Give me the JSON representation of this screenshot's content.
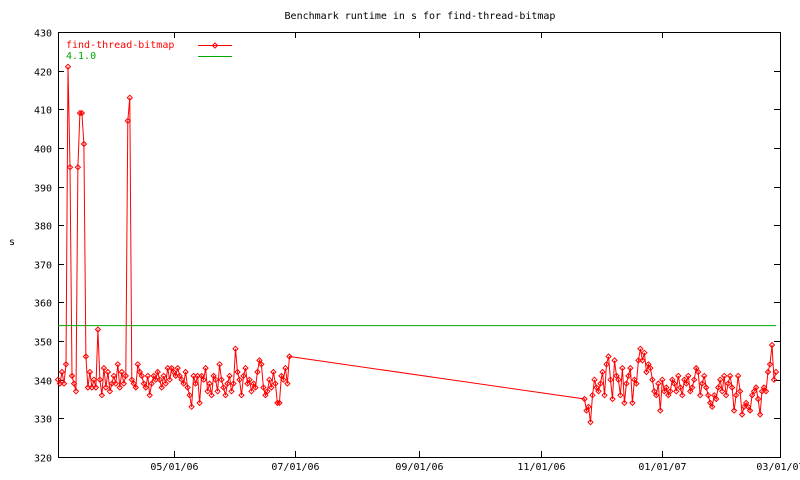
{
  "chart_data": {
    "type": "line",
    "title": "Benchmark runtime in s for find-thread-bitmap",
    "xlabel": "",
    "ylabel": "s",
    "ylim": [
      320,
      430
    ],
    "yticks": [
      "320",
      "330",
      "340",
      "350",
      "360",
      "370",
      "380",
      "390",
      "400",
      "410",
      "420",
      "430"
    ],
    "xlim": [
      "2006-03-04",
      "2007-03-01"
    ],
    "xticks": [
      {
        "date": "2006-05-01",
        "label": "05/01/06"
      },
      {
        "date": "2006-07-01",
        "label": "07/01/06"
      },
      {
        "date": "2006-09-01",
        "label": "09/01/06"
      },
      {
        "date": "2006-11-01",
        "label": "11/01/06"
      },
      {
        "date": "2007-01-01",
        "label": "01/01/07"
      },
      {
        "date": "2007-03-01",
        "label": "03/01/07"
      }
    ],
    "grid": false,
    "legend_position": "top-left",
    "series": [
      {
        "name": "find-thread-bitmap",
        "color": "#ff0000",
        "marker": "diamond",
        "points": [
          [
            "2006-03-04",
            340
          ],
          [
            "2006-03-05",
            339
          ],
          [
            "2006-03-06",
            342
          ],
          [
            "2006-03-07",
            339
          ],
          [
            "2006-03-08",
            344
          ],
          [
            "2006-03-09",
            421
          ],
          [
            "2006-03-10",
            395
          ],
          [
            "2006-03-11",
            341
          ],
          [
            "2006-03-12",
            339
          ],
          [
            "2006-03-13",
            337
          ],
          [
            "2006-03-14",
            395
          ],
          [
            "2006-03-15",
            409
          ],
          [
            "2006-03-16",
            409
          ],
          [
            "2006-03-17",
            401
          ],
          [
            "2006-03-18",
            346
          ],
          [
            "2006-03-19",
            338
          ],
          [
            "2006-03-20",
            342
          ],
          [
            "2006-03-21",
            338
          ],
          [
            "2006-03-22",
            340
          ],
          [
            "2006-03-23",
            338
          ],
          [
            "2006-03-24",
            353
          ],
          [
            "2006-03-25",
            340
          ],
          [
            "2006-03-26",
            336
          ],
          [
            "2006-03-27",
            343
          ],
          [
            "2006-03-28",
            338
          ],
          [
            "2006-03-29",
            342
          ],
          [
            "2006-03-30",
            337
          ],
          [
            "2006-03-31",
            339
          ],
          [
            "2006-04-01",
            341
          ],
          [
            "2006-04-02",
            339
          ],
          [
            "2006-04-03",
            344
          ],
          [
            "2006-04-04",
            338
          ],
          [
            "2006-04-05",
            342
          ],
          [
            "2006-04-06",
            339
          ],
          [
            "2006-04-07",
            341
          ],
          [
            "2006-04-08",
            407
          ],
          [
            "2006-04-09",
            413
          ],
          [
            "2006-04-10",
            340
          ],
          [
            "2006-04-11",
            339
          ],
          [
            "2006-04-12",
            338
          ],
          [
            "2006-04-13",
            344
          ],
          [
            "2006-04-14",
            342
          ],
          [
            "2006-04-15",
            341
          ],
          [
            "2006-04-16",
            339
          ],
          [
            "2006-04-17",
            338
          ],
          [
            "2006-04-18",
            341
          ],
          [
            "2006-04-19",
            336
          ],
          [
            "2006-04-20",
            339
          ],
          [
            "2006-04-21",
            341
          ],
          [
            "2006-04-22",
            340
          ],
          [
            "2006-04-23",
            342
          ],
          [
            "2006-04-24",
            340
          ],
          [
            "2006-04-25",
            338
          ],
          [
            "2006-04-26",
            341
          ],
          [
            "2006-04-27",
            339
          ],
          [
            "2006-04-28",
            343
          ],
          [
            "2006-04-29",
            340
          ],
          [
            "2006-04-30",
            343
          ],
          [
            "2006-05-01",
            342
          ],
          [
            "2006-05-02",
            341
          ],
          [
            "2006-05-03",
            343
          ],
          [
            "2006-05-04",
            341
          ],
          [
            "2006-05-05",
            340
          ],
          [
            "2006-05-06",
            339
          ],
          [
            "2006-05-07",
            342
          ],
          [
            "2006-05-08",
            338
          ],
          [
            "2006-05-09",
            336
          ],
          [
            "2006-05-10",
            333
          ],
          [
            "2006-05-11",
            341
          ],
          [
            "2006-05-12",
            339
          ],
          [
            "2006-05-13",
            341
          ],
          [
            "2006-05-14",
            334
          ],
          [
            "2006-05-15",
            341
          ],
          [
            "2006-05-16",
            340
          ],
          [
            "2006-05-17",
            343
          ],
          [
            "2006-05-18",
            337
          ],
          [
            "2006-05-19",
            339
          ],
          [
            "2006-05-20",
            336
          ],
          [
            "2006-05-21",
            341
          ],
          [
            "2006-05-22",
            340
          ],
          [
            "2006-05-23",
            337
          ],
          [
            "2006-05-24",
            344
          ],
          [
            "2006-05-25",
            340
          ],
          [
            "2006-05-26",
            338
          ],
          [
            "2006-05-27",
            336
          ],
          [
            "2006-05-28",
            339
          ],
          [
            "2006-05-29",
            341
          ],
          [
            "2006-05-30",
            337
          ],
          [
            "2006-05-31",
            339
          ],
          [
            "2006-06-01",
            348
          ],
          [
            "2006-06-02",
            342
          ],
          [
            "2006-06-03",
            340
          ],
          [
            "2006-06-04",
            336
          ],
          [
            "2006-06-05",
            341
          ],
          [
            "2006-06-06",
            343
          ],
          [
            "2006-06-07",
            339
          ],
          [
            "2006-06-08",
            340
          ],
          [
            "2006-06-09",
            337
          ],
          [
            "2006-06-10",
            339
          ],
          [
            "2006-06-11",
            338
          ],
          [
            "2006-06-12",
            342
          ],
          [
            "2006-06-13",
            345
          ],
          [
            "2006-06-14",
            344
          ],
          [
            "2006-06-15",
            338
          ],
          [
            "2006-06-16",
            336
          ],
          [
            "2006-06-17",
            337
          ],
          [
            "2006-06-18",
            340
          ],
          [
            "2006-06-19",
            338
          ],
          [
            "2006-06-20",
            342
          ],
          [
            "2006-06-21",
            339
          ],
          [
            "2006-06-22",
            334
          ],
          [
            "2006-06-23",
            334
          ],
          [
            "2006-06-24",
            341
          ],
          [
            "2006-06-25",
            340
          ],
          [
            "2006-06-26",
            343
          ],
          [
            "2006-06-27",
            339
          ],
          [
            "2006-06-28",
            346
          ],
          [
            "2006-11-23",
            335
          ],
          [
            "2006-11-24",
            332
          ],
          [
            "2006-11-25",
            333
          ],
          [
            "2006-11-26",
            329
          ],
          [
            "2006-11-27",
            336
          ],
          [
            "2006-11-28",
            340
          ],
          [
            "2006-11-29",
            338
          ],
          [
            "2006-11-30",
            337
          ],
          [
            "2006-12-01",
            339
          ],
          [
            "2006-12-02",
            342
          ],
          [
            "2006-12-03",
            336
          ],
          [
            "2006-12-04",
            344
          ],
          [
            "2006-12-05",
            346
          ],
          [
            "2006-12-06",
            340
          ],
          [
            "2006-12-07",
            335
          ],
          [
            "2006-12-08",
            345
          ],
          [
            "2006-12-09",
            341
          ],
          [
            "2006-12-10",
            340
          ],
          [
            "2006-12-11",
            336
          ],
          [
            "2006-12-12",
            343
          ],
          [
            "2006-12-13",
            334
          ],
          [
            "2006-12-14",
            339
          ],
          [
            "2006-12-15",
            341
          ],
          [
            "2006-12-16",
            343
          ],
          [
            "2006-12-17",
            334
          ],
          [
            "2006-12-18",
            340
          ],
          [
            "2006-12-19",
            339
          ],
          [
            "2006-12-20",
            345
          ],
          [
            "2006-12-21",
            348
          ],
          [
            "2006-12-22",
            345
          ],
          [
            "2006-12-23",
            347
          ],
          [
            "2006-12-24",
            342
          ],
          [
            "2006-12-25",
            344
          ],
          [
            "2006-12-26",
            343
          ],
          [
            "2006-12-27",
            340
          ],
          [
            "2006-12-28",
            337
          ],
          [
            "2006-12-29",
            336
          ],
          [
            "2006-12-30",
            339
          ],
          [
            "2006-12-31",
            332
          ],
          [
            "2007-01-01",
            340
          ],
          [
            "2007-01-02",
            337
          ],
          [
            "2007-01-03",
            338
          ],
          [
            "2007-01-04",
            336
          ],
          [
            "2007-01-05",
            337
          ],
          [
            "2007-01-06",
            340
          ],
          [
            "2007-01-07",
            339
          ],
          [
            "2007-01-08",
            337
          ],
          [
            "2007-01-09",
            341
          ],
          [
            "2007-01-10",
            338
          ],
          [
            "2007-01-11",
            336
          ],
          [
            "2007-01-12",
            340
          ],
          [
            "2007-01-13",
            339
          ],
          [
            "2007-01-14",
            341
          ],
          [
            "2007-01-15",
            337
          ],
          [
            "2007-01-16",
            338
          ],
          [
            "2007-01-17",
            340
          ],
          [
            "2007-01-18",
            343
          ],
          [
            "2007-01-19",
            342
          ],
          [
            "2007-01-20",
            336
          ],
          [
            "2007-01-21",
            339
          ],
          [
            "2007-01-22",
            341
          ],
          [
            "2007-01-23",
            338
          ],
          [
            "2007-01-24",
            336
          ],
          [
            "2007-01-25",
            334
          ],
          [
            "2007-01-26",
            333
          ],
          [
            "2007-01-27",
            336
          ],
          [
            "2007-01-28",
            335
          ],
          [
            "2007-01-29",
            338
          ],
          [
            "2007-01-30",
            340
          ],
          [
            "2007-01-31",
            337
          ],
          [
            "2007-02-01",
            341
          ],
          [
            "2007-02-02",
            336
          ],
          [
            "2007-02-03",
            339
          ],
          [
            "2007-02-04",
            341
          ],
          [
            "2007-02-05",
            338
          ],
          [
            "2007-02-06",
            332
          ],
          [
            "2007-02-07",
            336
          ],
          [
            "2007-02-08",
            341
          ],
          [
            "2007-02-09",
            337
          ],
          [
            "2007-02-10",
            331
          ],
          [
            "2007-02-11",
            333
          ],
          [
            "2007-02-12",
            334
          ],
          [
            "2007-02-13",
            333
          ],
          [
            "2007-02-14",
            332
          ],
          [
            "2007-02-15",
            336
          ],
          [
            "2007-02-16",
            337
          ],
          [
            "2007-02-17",
            338
          ],
          [
            "2007-02-18",
            335
          ],
          [
            "2007-02-19",
            331
          ],
          [
            "2007-02-20",
            337
          ],
          [
            "2007-02-21",
            338
          ],
          [
            "2007-02-22",
            337
          ],
          [
            "2007-02-23",
            342
          ],
          [
            "2007-02-24",
            344
          ],
          [
            "2007-02-25",
            349
          ],
          [
            "2007-02-26",
            340
          ],
          [
            "2007-02-27",
            342
          ]
        ]
      },
      {
        "name": "4.1.0",
        "color": "#00aa00",
        "marker": "none",
        "points": [
          [
            "2006-03-04",
            354
          ],
          [
            "2007-02-27",
            354
          ]
        ]
      }
    ]
  }
}
